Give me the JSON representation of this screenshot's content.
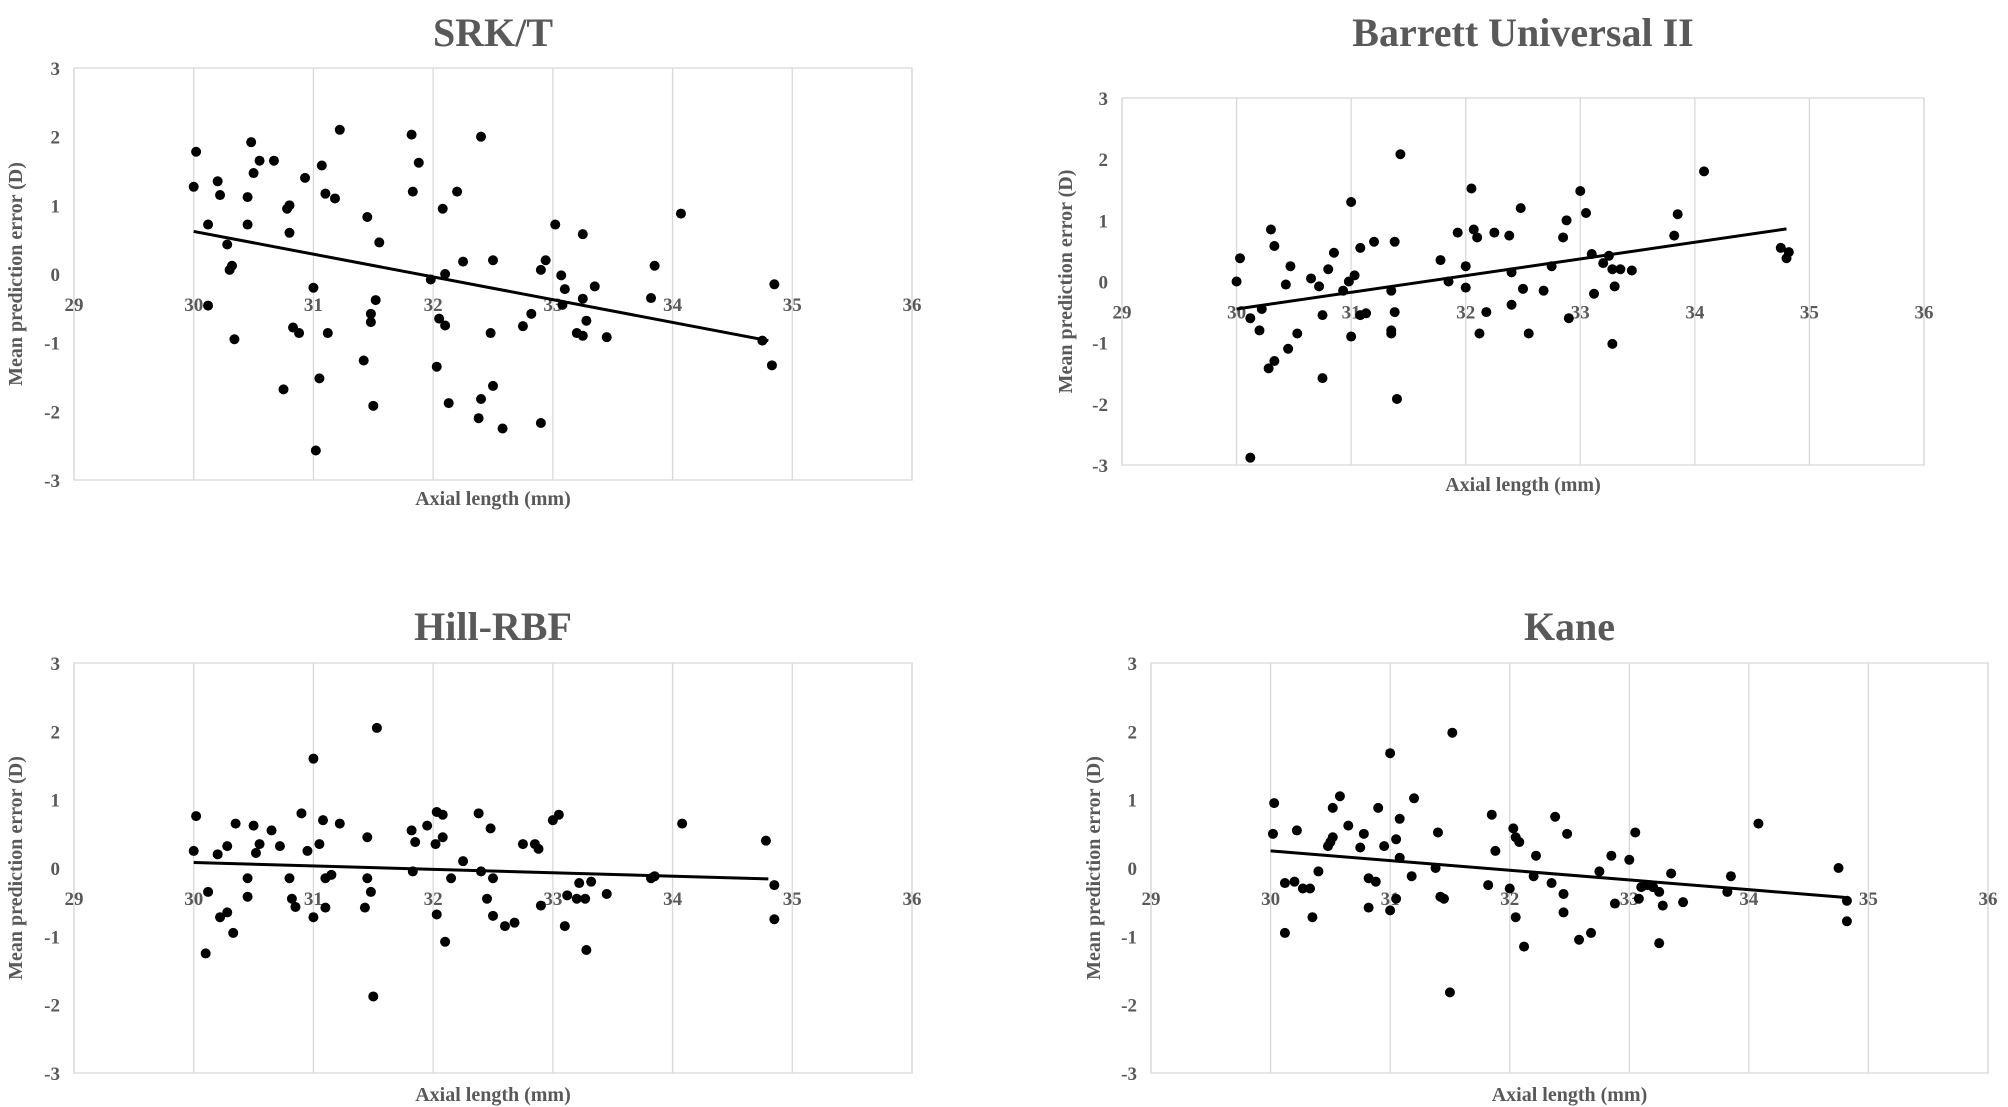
{
  "chart_data": [
    {
      "type": "scatter",
      "title": "SRK/T",
      "xlabel": "Axial length (mm)",
      "ylabel": "Mean prediction error (D)",
      "xlim": [
        29,
        36
      ],
      "ylim": [
        -3,
        3
      ],
      "x_ticks": [
        "29",
        "30",
        "31",
        "32",
        "33",
        "34",
        "35",
        "36"
      ],
      "y_ticks": [
        "3",
        "2",
        "1",
        "0",
        "-1",
        "-2",
        "-3"
      ],
      "gridlines": "vertical",
      "trendline": [
        [
          30.0,
          0.62
        ],
        [
          34.8,
          -0.97
        ]
      ],
      "points": [
        [
          30.02,
          1.78
        ],
        [
          30.0,
          1.27
        ],
        [
          30.2,
          1.35
        ],
        [
          30.22,
          1.15
        ],
        [
          30.12,
          0.72
        ],
        [
          30.12,
          -0.46
        ],
        [
          30.28,
          0.43
        ],
        [
          30.3,
          0.06
        ],
        [
          30.32,
          0.12
        ],
        [
          30.34,
          -0.95
        ],
        [
          30.48,
          1.92
        ],
        [
          30.5,
          1.47
        ],
        [
          30.55,
          1.65
        ],
        [
          30.45,
          1.12
        ],
        [
          30.45,
          0.72
        ],
        [
          30.67,
          1.65
        ],
        [
          30.78,
          0.95
        ],
        [
          30.8,
          1.0
        ],
        [
          30.8,
          0.6
        ],
        [
          30.83,
          -0.78
        ],
        [
          30.88,
          -0.86
        ],
        [
          30.75,
          -1.68
        ],
        [
          30.93,
          1.4
        ],
        [
          31.07,
          1.58
        ],
        [
          31.1,
          1.17
        ],
        [
          31.18,
          1.1
        ],
        [
          31.22,
          2.1
        ],
        [
          31.0,
          -0.2
        ],
        [
          31.12,
          -0.86
        ],
        [
          31.05,
          -1.52
        ],
        [
          31.02,
          -2.57
        ],
        [
          31.45,
          0.83
        ],
        [
          31.42,
          -1.26
        ],
        [
          31.48,
          -0.7
        ],
        [
          31.48,
          -0.58
        ],
        [
          31.55,
          0.46
        ],
        [
          31.52,
          -0.38
        ],
        [
          31.5,
          -1.92
        ],
        [
          31.82,
          2.03
        ],
        [
          31.88,
          1.62
        ],
        [
          31.83,
          1.2
        ],
        [
          31.98,
          -0.08
        ],
        [
          32.08,
          0.95
        ],
        [
          32.1,
          0.0
        ],
        [
          32.2,
          1.2
        ],
        [
          32.25,
          0.18
        ],
        [
          32.05,
          -0.65
        ],
        [
          32.1,
          -0.75
        ],
        [
          32.13,
          -1.88
        ],
        [
          32.03,
          -1.35
        ],
        [
          32.4,
          2.0
        ],
        [
          32.5,
          0.2
        ],
        [
          32.48,
          -0.86
        ],
        [
          32.5,
          -1.63
        ],
        [
          32.4,
          -1.82
        ],
        [
          32.38,
          -2.1
        ],
        [
          32.58,
          -2.25
        ],
        [
          32.75,
          -0.76
        ],
        [
          32.82,
          -0.58
        ],
        [
          32.9,
          0.06
        ],
        [
          32.94,
          0.2
        ],
        [
          32.9,
          -2.17
        ],
        [
          33.02,
          0.72
        ],
        [
          33.07,
          -0.02
        ],
        [
          33.1,
          -0.22
        ],
        [
          33.08,
          -0.45
        ],
        [
          33.2,
          -0.86
        ],
        [
          33.25,
          0.58
        ],
        [
          33.25,
          -0.36
        ],
        [
          33.28,
          -0.68
        ],
        [
          33.25,
          -0.9
        ],
        [
          33.35,
          -0.18
        ],
        [
          33.45,
          -0.92
        ],
        [
          33.85,
          0.12
        ],
        [
          33.82,
          -0.35
        ],
        [
          34.07,
          0.88
        ],
        [
          34.75,
          -0.97
        ],
        [
          34.85,
          -0.15
        ],
        [
          34.83,
          -1.33
        ]
      ]
    },
    {
      "type": "scatter",
      "title": "Barrett Universal II",
      "xlabel": "Axial length (mm)",
      "ylabel": "Mean prediction error (D)",
      "xlim": [
        29,
        36
      ],
      "ylim": [
        -3,
        3
      ],
      "x_ticks": [
        "29",
        "30",
        "31",
        "32",
        "33",
        "34",
        "35",
        "36"
      ],
      "y_ticks": [
        "3",
        "2",
        "1",
        "0",
        "-1",
        "-2",
        "-3"
      ],
      "gridlines": "vertical",
      "trendline": [
        [
          30.0,
          -0.45
        ],
        [
          34.8,
          0.86
        ]
      ],
      "points": [
        [
          30.03,
          0.38
        ],
        [
          30.0,
          0.0
        ],
        [
          30.12,
          -0.6
        ],
        [
          30.2,
          -0.8
        ],
        [
          30.22,
          -0.45
        ],
        [
          30.3,
          0.85
        ],
        [
          30.33,
          0.58
        ],
        [
          30.28,
          -1.42
        ],
        [
          30.33,
          -1.3
        ],
        [
          30.12,
          -2.88
        ],
        [
          30.47,
          0.25
        ],
        [
          30.43,
          -0.05
        ],
        [
          30.45,
          -1.1
        ],
        [
          30.53,
          -0.85
        ],
        [
          30.65,
          0.05
        ],
        [
          30.72,
          -0.08
        ],
        [
          30.75,
          -0.55
        ],
        [
          30.75,
          -1.58
        ],
        [
          30.8,
          0.2
        ],
        [
          30.85,
          0.47
        ],
        [
          30.93,
          -0.15
        ],
        [
          31.0,
          1.3
        ],
        [
          30.98,
          0.0
        ],
        [
          31.03,
          0.1
        ],
        [
          31.08,
          0.55
        ],
        [
          31.0,
          -0.9
        ],
        [
          31.08,
          -0.55
        ],
        [
          31.13,
          -0.52
        ],
        [
          31.2,
          0.65
        ],
        [
          31.43,
          2.08
        ],
        [
          31.38,
          0.65
        ],
        [
          31.35,
          -0.15
        ],
        [
          31.35,
          -0.8
        ],
        [
          31.35,
          -0.85
        ],
        [
          31.38,
          -0.5
        ],
        [
          31.4,
          -1.92
        ],
        [
          31.78,
          0.35
        ],
        [
          31.85,
          0.0
        ],
        [
          31.93,
          0.8
        ],
        [
          32.05,
          1.52
        ],
        [
          32.07,
          0.85
        ],
        [
          32.1,
          0.72
        ],
        [
          32.0,
          0.25
        ],
        [
          32.0,
          -0.1
        ],
        [
          32.18,
          -0.5
        ],
        [
          32.12,
          -0.85
        ],
        [
          32.25,
          0.8
        ],
        [
          32.38,
          0.75
        ],
        [
          32.4,
          0.15
        ],
        [
          32.4,
          -0.38
        ],
        [
          32.48,
          1.2
        ],
        [
          32.5,
          -0.12
        ],
        [
          32.55,
          -0.85
        ],
        [
          32.75,
          0.25
        ],
        [
          32.68,
          -0.15
        ],
        [
          32.85,
          0.72
        ],
        [
          32.88,
          1.0
        ],
        [
          32.9,
          -0.6
        ],
        [
          33.0,
          1.48
        ],
        [
          33.05,
          1.12
        ],
        [
          33.1,
          0.45
        ],
        [
          33.12,
          -0.2
        ],
        [
          33.2,
          0.3
        ],
        [
          33.25,
          0.42
        ],
        [
          33.28,
          0.2
        ],
        [
          33.3,
          -0.08
        ],
        [
          33.28,
          -1.02
        ],
        [
          33.35,
          0.2
        ],
        [
          33.45,
          0.18
        ],
        [
          33.82,
          0.75
        ],
        [
          33.85,
          1.1
        ],
        [
          34.08,
          1.8
        ],
        [
          34.75,
          0.55
        ],
        [
          34.82,
          0.48
        ],
        [
          34.8,
          0.38
        ]
      ]
    },
    {
      "type": "scatter",
      "title": "Hill-RBF",
      "xlabel": "Axial length (mm)",
      "ylabel": "Mean prediction error (D)",
      "xlim": [
        29,
        36
      ],
      "ylim": [
        -3,
        3
      ],
      "x_ticks": [
        "29",
        "30",
        "31",
        "32",
        "33",
        "34",
        "35",
        "36"
      ],
      "y_ticks": [
        "3",
        "2",
        "1",
        "0",
        "-1",
        "-2",
        "-3"
      ],
      "gridlines": "vertical",
      "trendline": [
        [
          30.0,
          0.08
        ],
        [
          34.8,
          -0.16
        ]
      ],
      "points": [
        [
          30.02,
          0.76
        ],
        [
          30.0,
          0.25
        ],
        [
          30.12,
          -0.35
        ],
        [
          30.1,
          -1.25
        ],
        [
          30.2,
          0.2
        ],
        [
          30.22,
          -0.72
        ],
        [
          30.28,
          0.32
        ],
        [
          30.28,
          -0.65
        ],
        [
          30.35,
          0.65
        ],
        [
          30.33,
          -0.95
        ],
        [
          30.45,
          -0.15
        ],
        [
          30.45,
          -0.42
        ],
        [
          30.5,
          0.62
        ],
        [
          30.52,
          0.22
        ],
        [
          30.55,
          0.35
        ],
        [
          30.65,
          0.55
        ],
        [
          30.72,
          0.32
        ],
        [
          30.8,
          -0.15
        ],
        [
          30.82,
          -0.45
        ],
        [
          30.85,
          -0.57
        ],
        [
          30.9,
          0.8
        ],
        [
          30.95,
          0.25
        ],
        [
          31.0,
          1.6
        ],
        [
          31.05,
          0.35
        ],
        [
          31.08,
          0.7
        ],
        [
          31.1,
          -0.15
        ],
        [
          31.1,
          -0.58
        ],
        [
          31.0,
          -0.72
        ],
        [
          31.15,
          -0.1
        ],
        [
          31.22,
          0.65
        ],
        [
          31.45,
          0.45
        ],
        [
          31.45,
          -0.15
        ],
        [
          31.48,
          -0.35
        ],
        [
          31.43,
          -0.58
        ],
        [
          31.5,
          -1.88
        ],
        [
          31.53,
          2.05
        ],
        [
          31.82,
          0.55
        ],
        [
          31.85,
          0.38
        ],
        [
          31.83,
          -0.05
        ],
        [
          31.95,
          0.62
        ],
        [
          32.02,
          0.35
        ],
        [
          32.03,
          0.82
        ],
        [
          32.08,
          0.78
        ],
        [
          32.08,
          0.45
        ],
        [
          32.03,
          -0.68
        ],
        [
          32.1,
          -1.08
        ],
        [
          32.15,
          -0.15
        ],
        [
          32.25,
          0.1
        ],
        [
          32.38,
          0.8
        ],
        [
          32.4,
          -0.05
        ],
        [
          32.45,
          -0.45
        ],
        [
          32.48,
          0.58
        ],
        [
          32.5,
          -0.15
        ],
        [
          32.5,
          -0.7
        ],
        [
          32.6,
          -0.85
        ],
        [
          32.68,
          -0.8
        ],
        [
          32.75,
          0.35
        ],
        [
          32.85,
          0.35
        ],
        [
          32.88,
          0.28
        ],
        [
          32.9,
          -0.55
        ],
        [
          33.0,
          0.7
        ],
        [
          33.05,
          0.78
        ],
        [
          33.1,
          -0.85
        ],
        [
          33.12,
          -0.4
        ],
        [
          33.2,
          -0.45
        ],
        [
          33.22,
          -0.22
        ],
        [
          33.27,
          -0.45
        ],
        [
          33.28,
          -1.2
        ],
        [
          33.32,
          -0.2
        ],
        [
          33.45,
          -0.38
        ],
        [
          33.82,
          -0.15
        ],
        [
          33.85,
          -0.12
        ],
        [
          34.08,
          0.65
        ],
        [
          34.78,
          0.4
        ],
        [
          34.85,
          -0.25
        ],
        [
          34.85,
          -0.75
        ]
      ]
    },
    {
      "type": "scatter",
      "title": "Kane",
      "xlabel": "Axial length (mm)",
      "ylabel": "Mean prediction error (D)",
      "xlim": [
        29,
        36
      ],
      "ylim": [
        -3,
        3
      ],
      "x_ticks": [
        "29",
        "30",
        "31",
        "32",
        "33",
        "34",
        "35",
        "36"
      ],
      "y_ticks": [
        "3",
        "2",
        "1",
        "0",
        "-1",
        "-2",
        "-3"
      ],
      "gridlines": "vertical",
      "trendline": [
        [
          30.0,
          0.25
        ],
        [
          34.8,
          -0.43
        ]
      ],
      "points": [
        [
          30.03,
          0.95
        ],
        [
          30.02,
          0.5
        ],
        [
          30.12,
          -0.22
        ],
        [
          30.12,
          -0.95
        ],
        [
          30.2,
          -0.2
        ],
        [
          30.22,
          0.55
        ],
        [
          30.27,
          -0.3
        ],
        [
          30.33,
          -0.3
        ],
        [
          30.35,
          -0.72
        ],
        [
          30.4,
          -0.05
        ],
        [
          30.48,
          0.32
        ],
        [
          30.5,
          0.38
        ],
        [
          30.52,
          0.45
        ],
        [
          30.52,
          0.88
        ],
        [
          30.58,
          1.05
        ],
        [
          30.65,
          0.62
        ],
        [
          30.75,
          0.3
        ],
        [
          30.78,
          0.5
        ],
        [
          30.82,
          -0.15
        ],
        [
          30.82,
          -0.58
        ],
        [
          30.88,
          -0.2
        ],
        [
          30.9,
          0.88
        ],
        [
          30.95,
          0.32
        ],
        [
          31.0,
          1.68
        ],
        [
          31.05,
          0.42
        ],
        [
          31.08,
          0.72
        ],
        [
          31.08,
          0.15
        ],
        [
          31.05,
          -0.45
        ],
        [
          31.0,
          -0.62
        ],
        [
          31.18,
          -0.12
        ],
        [
          31.2,
          1.02
        ],
        [
          31.4,
          0.52
        ],
        [
          31.38,
          0.0
        ],
        [
          31.42,
          -0.42
        ],
        [
          31.45,
          -0.45
        ],
        [
          31.52,
          1.98
        ],
        [
          31.5,
          -1.82
        ],
        [
          31.85,
          0.78
        ],
        [
          31.88,
          0.25
        ],
        [
          31.82,
          -0.25
        ],
        [
          32.0,
          -0.3
        ],
        [
          32.03,
          0.58
        ],
        [
          32.05,
          0.45
        ],
        [
          32.08,
          0.38
        ],
        [
          32.05,
          -0.72
        ],
        [
          32.12,
          -1.15
        ],
        [
          32.2,
          -0.12
        ],
        [
          32.22,
          0.18
        ],
        [
          32.38,
          0.75
        ],
        [
          32.35,
          -0.22
        ],
        [
          32.45,
          -0.38
        ],
        [
          32.45,
          -0.65
        ],
        [
          32.48,
          0.5
        ],
        [
          32.58,
          -1.05
        ],
        [
          32.68,
          -0.95
        ],
        [
          32.75,
          -0.05
        ],
        [
          32.85,
          0.18
        ],
        [
          32.88,
          -0.52
        ],
        [
          33.0,
          0.12
        ],
        [
          33.05,
          0.52
        ],
        [
          33.08,
          -0.45
        ],
        [
          33.1,
          -0.28
        ],
        [
          33.15,
          -0.25
        ],
        [
          33.2,
          -0.28
        ],
        [
          33.25,
          -0.35
        ],
        [
          33.28,
          -0.55
        ],
        [
          33.25,
          -1.1
        ],
        [
          33.35,
          -0.08
        ],
        [
          33.45,
          -0.5
        ],
        [
          33.82,
          -0.35
        ],
        [
          33.85,
          -0.12
        ],
        [
          34.08,
          0.65
        ],
        [
          34.75,
          0.0
        ],
        [
          34.82,
          -0.48
        ],
        [
          34.82,
          -0.78
        ]
      ]
    }
  ]
}
